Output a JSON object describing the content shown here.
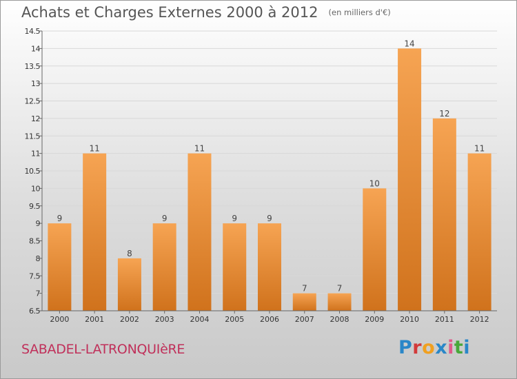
{
  "header": {
    "title": "Achats et Charges Externes 2000 à 2012",
    "unit": "(en milliers d'€)"
  },
  "footer": {
    "commune": "SABADEL-LATRONQUIèRE",
    "brand": "Proxiti"
  },
  "colors": {
    "bar_light": "#f6a453",
    "bar_dark": "#d0721c",
    "axis": "#666666",
    "title": "#555555",
    "commune": "#c0305a"
  },
  "chart_data": {
    "type": "bar",
    "categories": [
      "2000",
      "2001",
      "2002",
      "2003",
      "2004",
      "2005",
      "2006",
      "2007",
      "2008",
      "2009",
      "2010",
      "2011",
      "2012"
    ],
    "values": [
      9,
      11,
      8,
      9,
      11,
      9,
      9,
      7,
      7,
      10,
      14,
      12,
      11
    ],
    "data_labels": [
      "9",
      "11",
      "8",
      "9",
      "11",
      "9",
      "9",
      "7",
      "7",
      "10",
      "14",
      "12",
      "11"
    ],
    "yticks": [
      6.5,
      7,
      7.5,
      8,
      8.5,
      9,
      9.5,
      10,
      10.5,
      11,
      11.5,
      12,
      12.5,
      13,
      13.5,
      14,
      14.5
    ],
    "ytick_labels": [
      "6.5",
      "7",
      "7.5",
      "8",
      "8.5",
      "9",
      "9.5",
      "10",
      "10.5",
      "11",
      "11.5",
      "12",
      "12.5",
      "13",
      "13.5",
      "14",
      "14.5"
    ],
    "ylim": [
      6.5,
      14.5
    ],
    "title": "Achats et Charges Externes 2000 à 2012",
    "xlabel": "",
    "ylabel": "",
    "grid": true
  }
}
